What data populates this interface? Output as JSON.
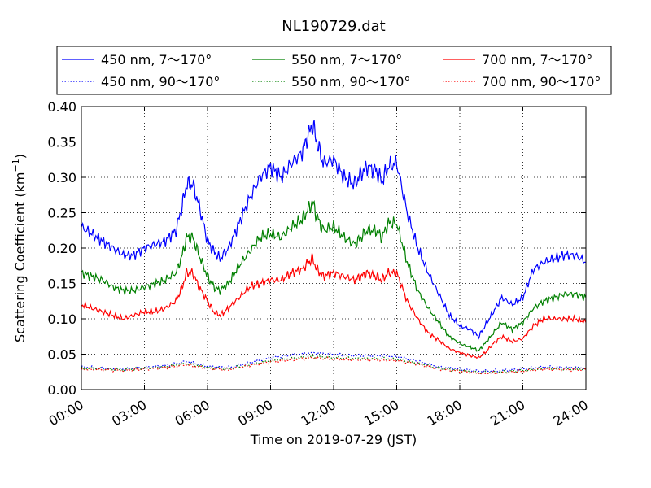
{
  "chart_data": {
    "type": "line",
    "title": "NL190729.dat",
    "xlabel": "Time on 2019-07-29 (JST)",
    "ylabel_main": "Scattering Coefficient (km",
    "ylabel_sup": "−1",
    "ylabel_end": ")",
    "xlim": [
      0,
      24
    ],
    "ylim": [
      0,
      0.4
    ],
    "grid": true,
    "legend_position": "top",
    "x_ticks": [
      {
        "value": 0,
        "label": "00:00"
      },
      {
        "value": 3,
        "label": "03:00"
      },
      {
        "value": 6,
        "label": "06:00"
      },
      {
        "value": 9,
        "label": "09:00"
      },
      {
        "value": 12,
        "label": "12:00"
      },
      {
        "value": 15,
        "label": "15:00"
      },
      {
        "value": 18,
        "label": "18:00"
      },
      {
        "value": 21,
        "label": "21:00"
      },
      {
        "value": 24,
        "label": "24:00"
      }
    ],
    "y_ticks": [
      {
        "value": 0,
        "label": "0.00"
      },
      {
        "value": 0.05,
        "label": "0.05"
      },
      {
        "value": 0.1,
        "label": "0.10"
      },
      {
        "value": 0.15,
        "label": "0.15"
      },
      {
        "value": 0.2,
        "label": "0.20"
      },
      {
        "value": 0.25,
        "label": "0.25"
      },
      {
        "value": 0.3,
        "label": "0.30"
      },
      {
        "value": 0.35,
        "label": "0.35"
      },
      {
        "value": 0.4,
        "label": "0.40"
      }
    ],
    "series": [
      {
        "name": "450 nm, 7～170°",
        "color": "#0000ff",
        "style": "solid",
        "x": [
          0,
          0.5,
          1,
          1.5,
          2,
          2.5,
          3,
          3.5,
          4,
          4.5,
          4.8,
          5,
          5.3,
          5.6,
          6,
          6.3,
          6.6,
          7,
          7.5,
          8,
          8.5,
          9,
          9.5,
          10,
          10.5,
          10.8,
          11,
          11.2,
          11.5,
          12,
          12.5,
          13,
          13.3,
          13.6,
          14,
          14.3,
          14.6,
          15,
          15.5,
          16,
          16.5,
          17,
          17.5,
          18,
          18.5,
          18.9,
          19.2,
          19.6,
          20,
          20.5,
          21,
          21.5,
          22,
          22.5,
          23,
          23.5,
          24
        ],
        "values": [
          0.23,
          0.22,
          0.21,
          0.2,
          0.19,
          0.19,
          0.2,
          0.205,
          0.21,
          0.225,
          0.26,
          0.29,
          0.29,
          0.26,
          0.21,
          0.195,
          0.185,
          0.2,
          0.235,
          0.27,
          0.3,
          0.315,
          0.3,
          0.32,
          0.335,
          0.36,
          0.375,
          0.35,
          0.32,
          0.325,
          0.3,
          0.29,
          0.305,
          0.315,
          0.31,
          0.295,
          0.315,
          0.32,
          0.25,
          0.2,
          0.165,
          0.135,
          0.105,
          0.09,
          0.085,
          0.075,
          0.09,
          0.11,
          0.13,
          0.12,
          0.13,
          0.17,
          0.18,
          0.185,
          0.19,
          0.19,
          0.18
        ]
      },
      {
        "name": "450 nm, 90～170°",
        "color": "#0000ff",
        "style": "dotted",
        "x": [
          0,
          1,
          2,
          3,
          4,
          5,
          6,
          7,
          8,
          9,
          10,
          11,
          12,
          13,
          14,
          15,
          16,
          17,
          18,
          19,
          20,
          21,
          22,
          23,
          24
        ],
        "values": [
          0.032,
          0.03,
          0.029,
          0.031,
          0.034,
          0.04,
          0.033,
          0.031,
          0.038,
          0.045,
          0.049,
          0.052,
          0.05,
          0.048,
          0.048,
          0.047,
          0.04,
          0.032,
          0.029,
          0.026,
          0.027,
          0.029,
          0.032,
          0.031,
          0.031
        ]
      },
      {
        "name": "550 nm, 7～170°",
        "color": "#008000",
        "style": "solid",
        "x": [
          0,
          0.5,
          1,
          1.5,
          2,
          2.5,
          3,
          3.5,
          4,
          4.5,
          4.8,
          5,
          5.3,
          5.6,
          6,
          6.3,
          6.6,
          7,
          7.5,
          8,
          8.5,
          9,
          9.5,
          10,
          10.5,
          10.8,
          11,
          11.2,
          11.5,
          12,
          12.5,
          13,
          13.3,
          13.6,
          14,
          14.3,
          14.6,
          15,
          15.5,
          16,
          16.5,
          17,
          17.5,
          18,
          18.5,
          18.9,
          19.2,
          19.6,
          20,
          20.5,
          21,
          21.5,
          22,
          22.5,
          23,
          23.5,
          24
        ],
        "values": [
          0.165,
          0.16,
          0.155,
          0.145,
          0.14,
          0.14,
          0.145,
          0.15,
          0.155,
          0.165,
          0.19,
          0.215,
          0.215,
          0.19,
          0.16,
          0.145,
          0.14,
          0.15,
          0.175,
          0.195,
          0.215,
          0.22,
          0.215,
          0.23,
          0.24,
          0.255,
          0.265,
          0.245,
          0.225,
          0.23,
          0.215,
          0.205,
          0.215,
          0.225,
          0.225,
          0.215,
          0.235,
          0.235,
          0.18,
          0.14,
          0.115,
          0.095,
          0.075,
          0.065,
          0.06,
          0.055,
          0.065,
          0.08,
          0.095,
          0.085,
          0.095,
          0.115,
          0.125,
          0.13,
          0.135,
          0.135,
          0.13
        ]
      },
      {
        "name": "550 nm, 90～170°",
        "color": "#008000",
        "style": "dotted",
        "x": [
          0,
          1,
          2,
          3,
          4,
          5,
          6,
          7,
          8,
          9,
          10,
          11,
          12,
          13,
          14,
          15,
          16,
          17,
          18,
          19,
          20,
          21,
          22,
          23,
          24
        ],
        "values": [
          0.03,
          0.029,
          0.028,
          0.03,
          0.032,
          0.037,
          0.031,
          0.029,
          0.035,
          0.041,
          0.044,
          0.047,
          0.045,
          0.044,
          0.044,
          0.043,
          0.037,
          0.03,
          0.027,
          0.024,
          0.025,
          0.027,
          0.03,
          0.029,
          0.029
        ]
      },
      {
        "name": "700 nm, 7～170°",
        "color": "#ff0000",
        "style": "solid",
        "x": [
          0,
          0.5,
          1,
          1.5,
          2,
          2.5,
          3,
          3.5,
          4,
          4.5,
          4.8,
          5,
          5.3,
          5.6,
          6,
          6.3,
          6.6,
          7,
          7.5,
          8,
          8.5,
          9,
          9.5,
          10,
          10.5,
          10.8,
          11,
          11.2,
          11.5,
          12,
          12.5,
          13,
          13.3,
          13.6,
          14,
          14.3,
          14.6,
          15,
          15.5,
          16,
          16.5,
          17,
          17.5,
          18,
          18.5,
          18.9,
          19.2,
          19.6,
          20,
          20.5,
          21,
          21.5,
          22,
          22.5,
          23,
          23.5,
          24
        ],
        "values": [
          0.12,
          0.115,
          0.11,
          0.105,
          0.1,
          0.105,
          0.11,
          0.11,
          0.115,
          0.125,
          0.145,
          0.165,
          0.165,
          0.145,
          0.125,
          0.11,
          0.105,
          0.115,
          0.13,
          0.145,
          0.15,
          0.155,
          0.155,
          0.165,
          0.17,
          0.18,
          0.185,
          0.17,
          0.16,
          0.165,
          0.16,
          0.155,
          0.16,
          0.165,
          0.16,
          0.155,
          0.165,
          0.165,
          0.125,
          0.1,
          0.08,
          0.07,
          0.058,
          0.052,
          0.048,
          0.045,
          0.052,
          0.065,
          0.075,
          0.068,
          0.072,
          0.09,
          0.1,
          0.1,
          0.1,
          0.1,
          0.095
        ]
      },
      {
        "name": "700 nm, 90～170°",
        "color": "#ff0000",
        "style": "dotted",
        "x": [
          0,
          1,
          2,
          3,
          4,
          5,
          6,
          7,
          8,
          9,
          10,
          11,
          12,
          13,
          14,
          15,
          16,
          17,
          18,
          19,
          20,
          21,
          22,
          23,
          24
        ],
        "values": [
          0.029,
          0.028,
          0.027,
          0.029,
          0.031,
          0.035,
          0.03,
          0.028,
          0.034,
          0.039,
          0.042,
          0.045,
          0.043,
          0.042,
          0.042,
          0.041,
          0.036,
          0.029,
          0.026,
          0.023,
          0.024,
          0.026,
          0.029,
          0.028,
          0.028
        ]
      }
    ]
  }
}
